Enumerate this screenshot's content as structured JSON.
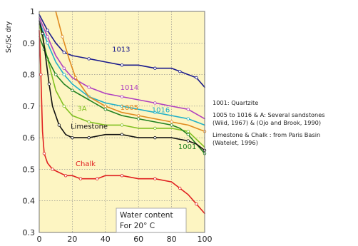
{
  "chart_data": {
    "type": "line",
    "title": "",
    "xlabel": "",
    "ylabel": "Sc/Sc dry",
    "xlim": [
      0,
      100
    ],
    "ylim": [
      0.3,
      1.0
    ],
    "xticks": [
      "0",
      "20",
      "40",
      "60",
      "80",
      "100"
    ],
    "yticks": [
      "0.3",
      "0.4",
      "0.5",
      "0.6",
      "0.7",
      "0.8",
      "0.9",
      "1"
    ],
    "grid": true,
    "background": "#fdf5c2",
    "annotation_box": {
      "line1": "Water content",
      "line2": "For 20° C"
    },
    "series": [
      {
        "name": "1013",
        "color": "#1a1a8c",
        "x": [
          0,
          5,
          10,
          15,
          20,
          30,
          40,
          50,
          60,
          70,
          80,
          85,
          90,
          95,
          100
        ],
        "y": [
          0.99,
          0.94,
          0.9,
          0.87,
          0.86,
          0.85,
          0.84,
          0.83,
          0.83,
          0.82,
          0.82,
          0.81,
          0.8,
          0.79,
          0.76
        ]
      },
      {
        "name": "1014",
        "color": "#b040c0",
        "x": [
          0,
          5,
          10,
          15,
          20,
          30,
          40,
          50,
          60,
          70,
          80,
          90,
          100
        ],
        "y": [
          0.98,
          0.92,
          0.86,
          0.82,
          0.79,
          0.76,
          0.74,
          0.73,
          0.72,
          0.71,
          0.7,
          0.69,
          0.66
        ]
      },
      {
        "name": "1016",
        "color": "#20b0c8",
        "x": [
          0,
          5,
          10,
          15,
          20,
          30,
          40,
          50,
          60,
          70,
          80,
          90,
          100
        ],
        "y": [
          0.97,
          0.9,
          0.84,
          0.8,
          0.77,
          0.73,
          0.71,
          0.7,
          0.69,
          0.68,
          0.67,
          0.66,
          0.64
        ]
      },
      {
        "name": "1005",
        "color": "#e08a20",
        "x": [
          10,
          14,
          18,
          22,
          30,
          40,
          50,
          60,
          70,
          80,
          90,
          100
        ],
        "y": [
          1.0,
          0.92,
          0.85,
          0.79,
          0.73,
          0.7,
          0.68,
          0.67,
          0.66,
          0.65,
          0.64,
          0.62
        ]
      },
      {
        "name": "3A",
        "color": "#80c020",
        "x": [
          0,
          5,
          10,
          15,
          20,
          30,
          40,
          50,
          60,
          70,
          80,
          90,
          100
        ],
        "y": [
          0.96,
          0.85,
          0.75,
          0.7,
          0.67,
          0.65,
          0.64,
          0.64,
          0.63,
          0.63,
          0.63,
          0.62,
          0.57
        ]
      },
      {
        "name": "1001",
        "color": "#208020",
        "x": [
          0,
          3,
          6,
          10,
          15,
          20,
          30,
          40,
          50,
          60,
          70,
          80,
          85,
          90,
          95,
          100
        ],
        "y": [
          0.92,
          0.88,
          0.84,
          0.8,
          0.77,
          0.75,
          0.72,
          0.69,
          0.67,
          0.66,
          0.65,
          0.64,
          0.63,
          0.61,
          0.58,
          0.55
        ]
      },
      {
        "name": "Limestone",
        "color": "#111111",
        "x": [
          0,
          2,
          4,
          6,
          8,
          12,
          16,
          20,
          25,
          30,
          40,
          50,
          60,
          70,
          80,
          90,
          95,
          100
        ],
        "y": [
          0.97,
          0.93,
          0.85,
          0.77,
          0.7,
          0.64,
          0.61,
          0.6,
          0.6,
          0.6,
          0.61,
          0.61,
          0.6,
          0.6,
          0.6,
          0.59,
          0.58,
          0.56
        ]
      },
      {
        "name": "Chalk",
        "color": "#e02020",
        "x": [
          0,
          1,
          2,
          3,
          5,
          8,
          12,
          16,
          20,
          25,
          30,
          35,
          40,
          50,
          60,
          70,
          80,
          85,
          90,
          95,
          100
        ],
        "y": [
          0.94,
          0.8,
          0.62,
          0.55,
          0.52,
          0.5,
          0.49,
          0.48,
          0.48,
          0.47,
          0.47,
          0.47,
          0.48,
          0.48,
          0.47,
          0.47,
          0.46,
          0.44,
          0.42,
          0.39,
          0.36
        ]
      }
    ],
    "series_labels": [
      {
        "name": "1013",
        "x": 44,
        "y": 0.872
      },
      {
        "name": "1014",
        "x": 49,
        "y": 0.752
      },
      {
        "name": "1005",
        "x": 49,
        "y": 0.688
      },
      {
        "name": "3A",
        "x": 23,
        "y": 0.685
      },
      {
        "name": "1016",
        "x": 68,
        "y": 0.68
      },
      {
        "name": "Limestone",
        "x": 19,
        "y": 0.628
      },
      {
        "name": "1001",
        "x": 84,
        "y": 0.564
      },
      {
        "name": "Chalk",
        "x": 22,
        "y": 0.51
      }
    ]
  },
  "notes": {
    "note1": "1001: Quartzite",
    "note2": "1005 to 1016 & A:  Several sandstones",
    "note3": "(Wiid, 1967) & (Ojo and Brook, 1990)",
    "note4": "Limestone & Chalk :  from Paris Basin",
    "note5": "(Watelet, 1996)"
  }
}
